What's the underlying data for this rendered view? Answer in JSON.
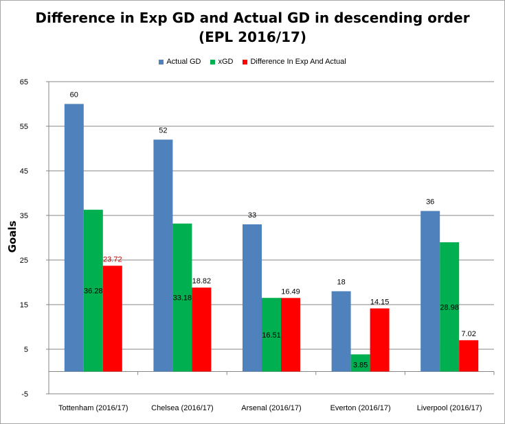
{
  "chart_data": {
    "type": "bar",
    "title": [
      "Difference in Exp GD and Actual GD in descending order",
      "(EPL 2016/17)"
    ],
    "xlabel": "",
    "ylabel": "Goals",
    "ylim": [
      -5,
      65
    ],
    "yticks": [
      -5,
      5,
      15,
      25,
      35,
      45,
      55,
      65
    ],
    "legend_position": "top",
    "grid": true,
    "categories": [
      "Tottenham (2016/17)",
      "Chelsea (2016/17)",
      "Arsenal (2016/17)",
      "Everton (2016/17)",
      "Liverpool (2016/17)"
    ],
    "series": [
      {
        "name": "Actual GD",
        "color": "#4f81bd",
        "values": [
          60,
          52,
          33,
          18,
          36
        ],
        "labels": [
          "60",
          "52",
          "33",
          "18",
          "36"
        ]
      },
      {
        "name": "xGD",
        "color": "#00b050",
        "values": [
          36.28,
          33.18,
          16.51,
          3.85,
          28.98
        ],
        "labels": [
          "36.28",
          "33.18",
          "16.51",
          "3.85",
          "28.98"
        ]
      },
      {
        "name": "Difference In Exp And Actual",
        "color": "#ff0000",
        "values": [
          23.72,
          18.82,
          16.49,
          14.15,
          7.02
        ],
        "labels": [
          "23.72",
          "18.82",
          "16.49",
          "14.15",
          "7.02"
        ]
      }
    ],
    "highlight_label_color": "#c00000"
  }
}
